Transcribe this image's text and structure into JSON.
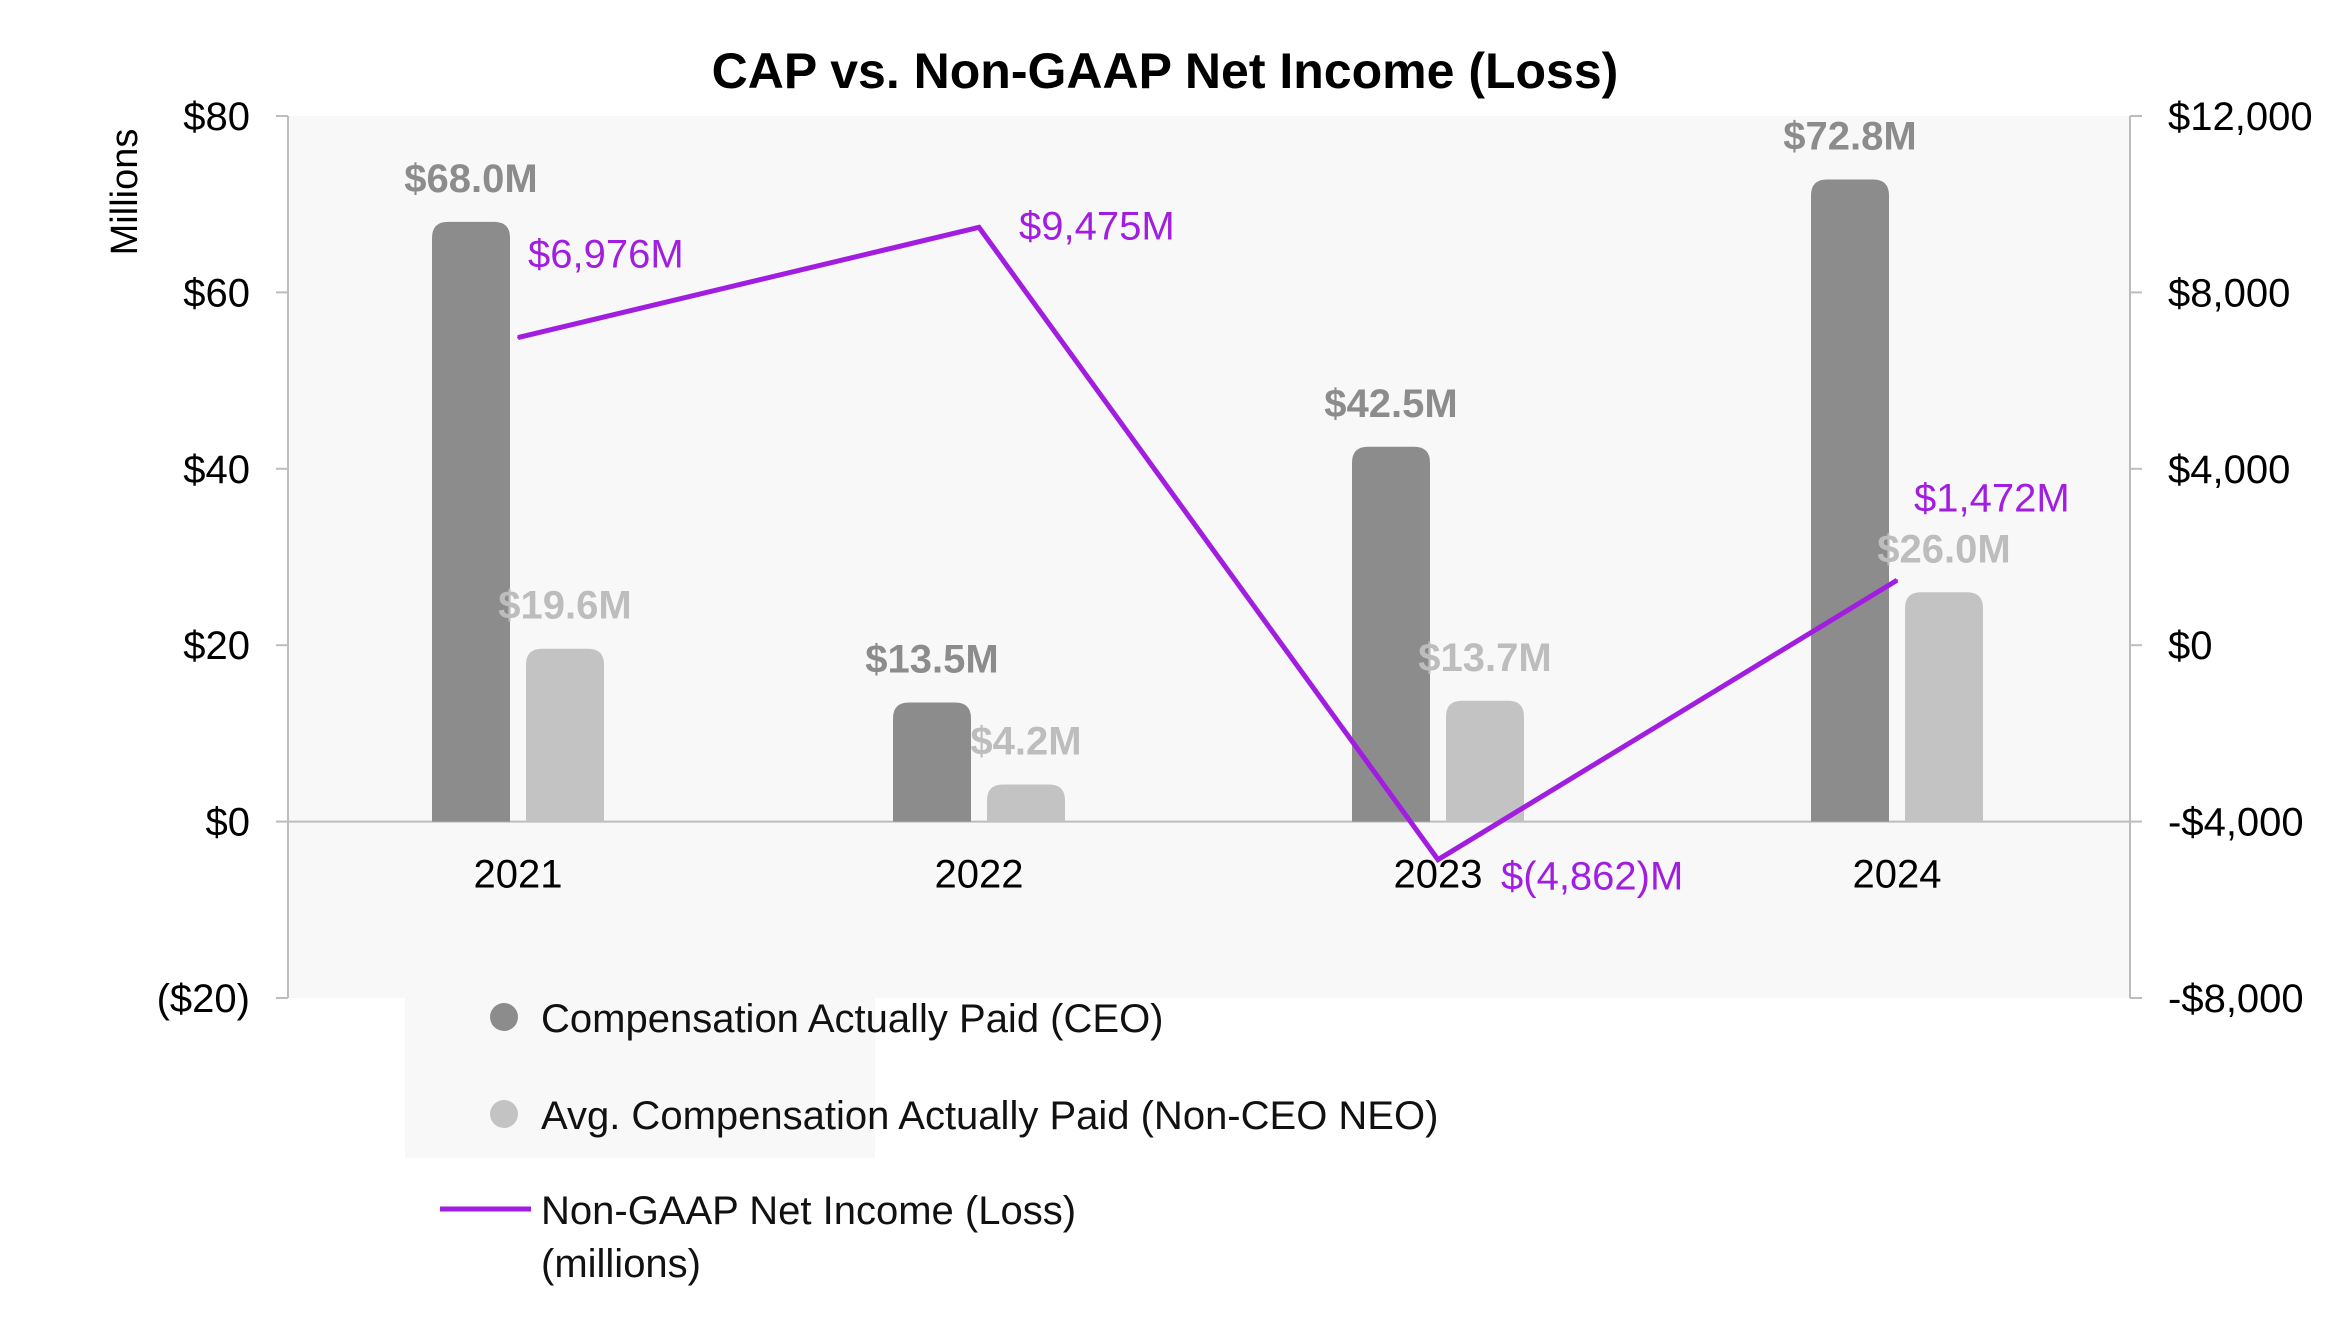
{
  "chart_data": {
    "type": "bar+line",
    "title": "CAP vs. Non-GAAP Net Income (Loss)",
    "left_axis_label": "Millions",
    "categories": [
      "2021",
      "2022",
      "2023",
      "2024"
    ],
    "left_axis": {
      "min": -20,
      "max": 80,
      "ticks": [
        80,
        60,
        40,
        20,
        0,
        -20
      ],
      "tick_labels": [
        "$80",
        "$60",
        "$40",
        "$20",
        "$0",
        "($20)"
      ]
    },
    "right_axis": {
      "min": -8000,
      "max": 12000,
      "ticks": [
        12000,
        8000,
        4000,
        0,
        -4000,
        -8000
      ],
      "tick_labels": [
        "$12,000",
        "$8,000",
        "$4,000",
        "$0",
        "-$4,000",
        "-$8,000"
      ]
    },
    "series": [
      {
        "name": "Compensation Actually Paid (CEO)",
        "kind": "bar",
        "axis": "left",
        "color": "#8c8c8c",
        "label_color": "#8c8c8c",
        "values": [
          68.0,
          13.5,
          42.5,
          72.8
        ],
        "labels": [
          "$68.0M",
          "$13.5M",
          "$42.5M",
          "$72.8M"
        ]
      },
      {
        "name": "Avg. Compensation Actually Paid (Non-CEO NEO)",
        "kind": "bar",
        "axis": "left",
        "color": "#c3c3c3",
        "label_color": "#bdbdbd",
        "values": [
          19.6,
          4.2,
          13.7,
          26.0
        ],
        "labels": [
          "$19.6M",
          "$4.2M",
          "$13.7M",
          "$26.0M"
        ]
      },
      {
        "name": "Non-GAAP Net Income (Loss)",
        "name_line2": "(millions)",
        "kind": "line",
        "axis": "right",
        "color": "#a11ee0",
        "label_color": "#a11ee0",
        "values": [
          6976,
          9475,
          -4862,
          1472
        ],
        "labels": [
          "$6,976M",
          "$9,475M",
          "$(4,862)M",
          "$1,472M"
        ]
      }
    ],
    "legend_position": "bottom-left"
  }
}
